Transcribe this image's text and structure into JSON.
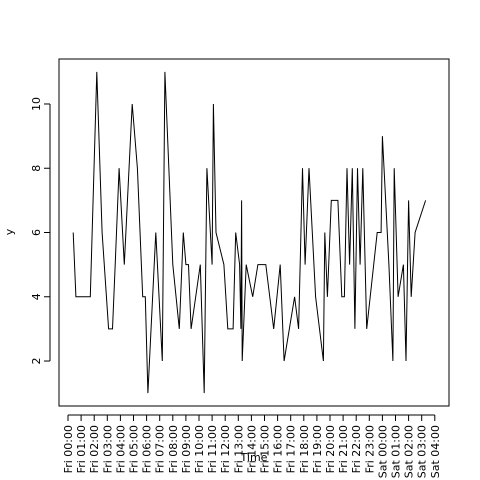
{
  "chart_data": {
    "type": "line",
    "title": "",
    "xlabel": "Time",
    "ylabel": "y",
    "grid": false,
    "legend": "none",
    "x_ticks": [
      "Fri 00:00",
      "Fri 01:00",
      "Fri 02:00",
      "Fri 03:00",
      "Fri 04:00",
      "Fri 05:00",
      "Fri 06:00",
      "Fri 07:00",
      "Fri 08:00",
      "Fri 09:00",
      "Fri 10:00",
      "Fri 11:00",
      "Fri 12:00",
      "Fri 13:00",
      "Fri 14:00",
      "Fri 15:00",
      "Fri 16:00",
      "Fri 17:00",
      "Fri 18:00",
      "Fri 19:00",
      "Fri 20:00",
      "Fri 21:00",
      "Fri 22:00",
      "Fri 23:00",
      "Sat 00:00",
      "Sat 01:00",
      "Sat 02:00",
      "Sat 03:00",
      "Sat 04:00"
    ],
    "y_ticks": [
      2,
      4,
      6,
      8,
      10
    ],
    "xlim_hours": [
      -0.3,
      28.3
    ],
    "ylim": [
      0.6,
      11.4
    ],
    "series": [
      {
        "color": "#000000",
        "hours": [
          0.4,
          0.6,
          1.2,
          1.7,
          2.2,
          2.6,
          3.1,
          3.4,
          3.6,
          3.9,
          4.3,
          4.9,
          5.3,
          5.7,
          5.9,
          6.1,
          6.7,
          7.2,
          7.4,
          8.0,
          8.5,
          8.8,
          9.0,
          9.2,
          9.4,
          10.1,
          10.4,
          10.6,
          11.0,
          11.1,
          11.3,
          11.9,
          12.2,
          12.6,
          12.8,
          13.1,
          13.2,
          13.25,
          13.3,
          13.6,
          14.1,
          14.5,
          15.1,
          15.7,
          16.2,
          16.5,
          17.3,
          17.6,
          17.9,
          18.1,
          18.4,
          18.9,
          19.5,
          19.6,
          19.8,
          20.1,
          20.6,
          20.9,
          21.1,
          21.3,
          21.5,
          21.7,
          21.9,
          22.1,
          22.3,
          22.5,
          22.8,
          23.6,
          23.7,
          23.9,
          24.0,
          24.5,
          24.8,
          24.9,
          25.2,
          25.6,
          25.8,
          26.0,
          26.2,
          26.5,
          27.3
        ]
      }
    ],
    "values": [
      6,
      4,
      4,
      4,
      11,
      6,
      3,
      3,
      5,
      8,
      5,
      10,
      8,
      4,
      4,
      1,
      6,
      2,
      11,
      5,
      3,
      6,
      5,
      5,
      3,
      5,
      1,
      8,
      5,
      10,
      6,
      5,
      3,
      3,
      6,
      5,
      3,
      7,
      2,
      5,
      4,
      5,
      5,
      3,
      5,
      2,
      4,
      3,
      8,
      5,
      8,
      4,
      2,
      6,
      4,
      7,
      7,
      4,
      4,
      8,
      5,
      8,
      3,
      8,
      5,
      8,
      3,
      6,
      6,
      6,
      9,
      5,
      2,
      8,
      4,
      5,
      2,
      7,
      4,
      6,
      7
    ]
  }
}
